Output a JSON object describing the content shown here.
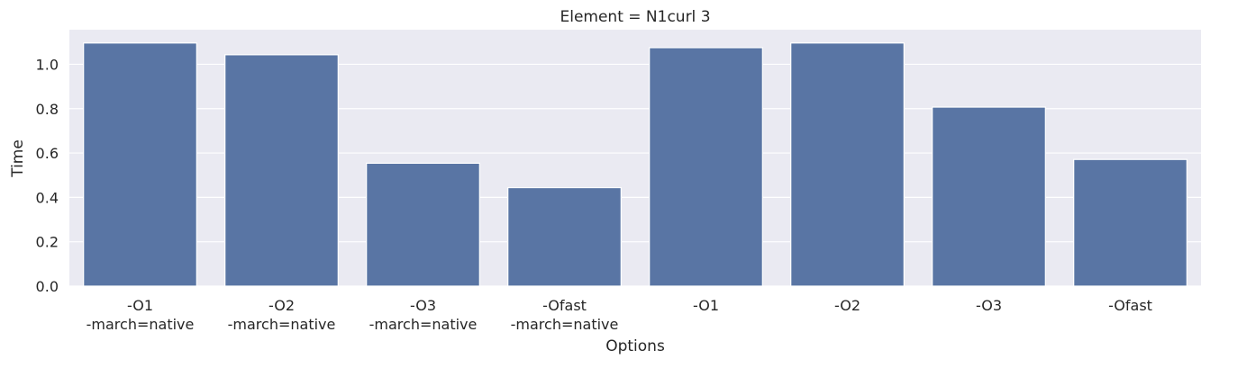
{
  "chart_data": {
    "type": "bar",
    "title": "Element = N1curl 3",
    "xlabel": "Options",
    "ylabel": "Time",
    "categories": [
      [
        "-O1",
        "-march=native"
      ],
      [
        "-O2",
        "-march=native"
      ],
      [
        "-O3",
        "-march=native"
      ],
      [
        "-Ofast",
        "-march=native"
      ],
      [
        "-O1"
      ],
      [
        "-O2"
      ],
      [
        "-O3"
      ],
      [
        "-Ofast"
      ]
    ],
    "values": [
      1.096,
      1.043,
      0.554,
      0.444,
      1.075,
      1.096,
      0.807,
      0.571
    ],
    "ylim": [
      0,
      1.156
    ],
    "yticks": [
      "0.0",
      "0.2",
      "0.4",
      "0.6",
      "0.8",
      "1.0"
    ],
    "grid": true,
    "colors": {
      "bar": "#5975a4",
      "background": "#eaeaf2",
      "grid": "#ffffff"
    }
  }
}
